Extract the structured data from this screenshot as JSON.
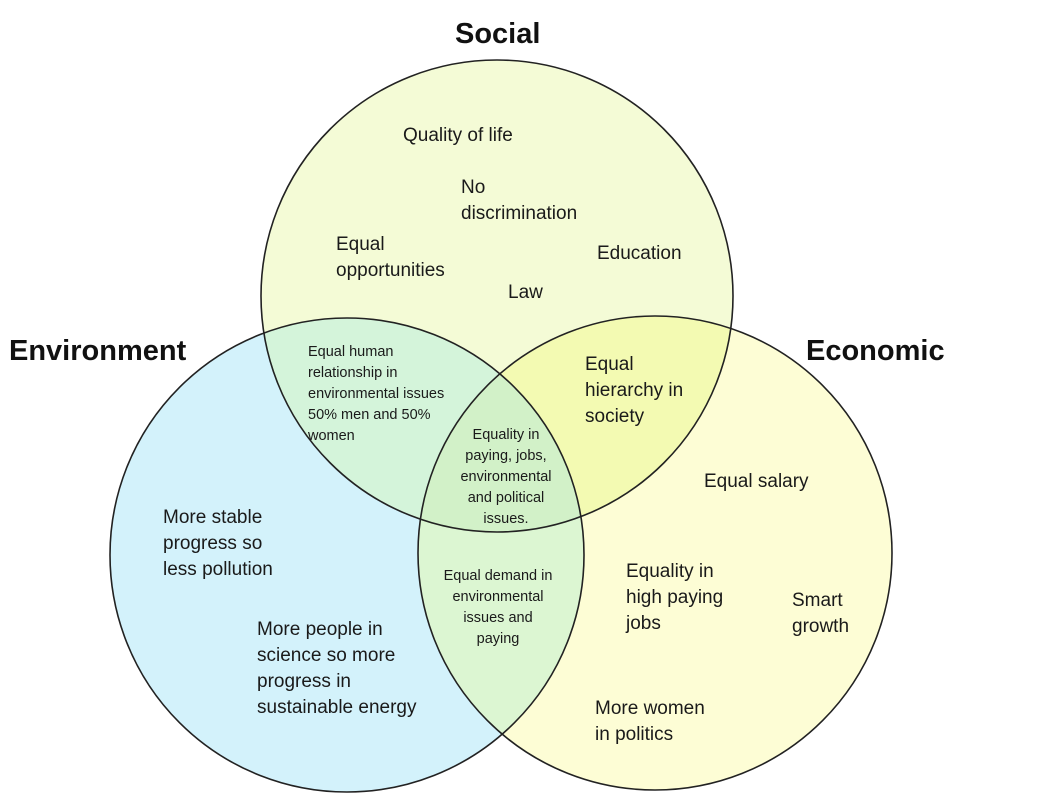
{
  "colors": {
    "social_fill": "#f4fbd6",
    "environment_fill": "#d3f2fb",
    "economic_fill": "#fdfdd5",
    "social_environment_overlap": "#d4f4da",
    "social_economic_overlap": "#f3fab2",
    "environment_economic_overlap": "#dcf6d2",
    "center_overlap": "#d2f1c8",
    "stroke": "#222222"
  },
  "sets": {
    "social": "Social",
    "environment": "Environment",
    "economic": "Economic"
  },
  "social_only": [
    "Quality of life",
    "No\ndiscrimination",
    "Equal\nopportunities",
    "Education",
    "Law"
  ],
  "environment_only": [
    "More stable\nprogress so\nless pollution",
    "More people in\nscience so more\nprogress in\nsustainable energy"
  ],
  "economic_only": [
    "Equal salary",
    "Equality in\nhigh paying\njobs",
    "Smart\ngrowth",
    "More women\nin politics"
  ],
  "social_environment": "Equal human\nrelationship in\nenvironmental issues\n50% men and 50%\nwomen",
  "social_economic": "Equal\nhierarchy in\nsociety",
  "environment_economic": "Equal demand in\nenvironmental\nissues and\npaying",
  "all_three": "Equality in\npaying, jobs,\nenvironmental\nand political\nissues."
}
